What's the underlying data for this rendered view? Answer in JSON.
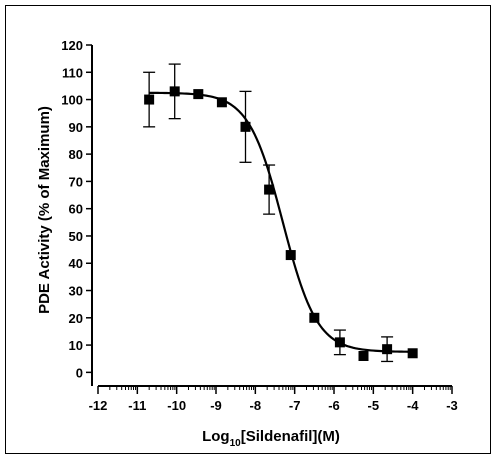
{
  "chart_data": {
    "type": "scatter",
    "xlabel": {
      "prefix": "Log",
      "sub": "10",
      "suffix": "[Sildenafil](M)"
    },
    "ylabel": "PDE  Activity (% of Maximum)",
    "xlim": [
      -12,
      -3
    ],
    "ylim": [
      -5,
      120
    ],
    "x_ticks": [
      -12,
      -11,
      -10,
      -9,
      -8,
      -7,
      -6,
      -5,
      -4,
      -3
    ],
    "x_tick_labels": [
      "-12",
      "-11",
      "-10",
      "-9",
      "-8",
      "-7",
      "-6",
      "-5",
      "-4",
      "-3"
    ],
    "y_ticks": [
      0,
      10,
      20,
      30,
      40,
      50,
      60,
      70,
      80,
      90,
      100,
      110,
      120
    ],
    "y_tick_labels": [
      "0",
      "10",
      "20",
      "30",
      "40",
      "50",
      "60",
      "70",
      "80",
      "90",
      "100",
      "110",
      "120"
    ],
    "grid": false,
    "marker_color": "#000000",
    "points": [
      {
        "x": -10.7,
        "y": 100,
        "err": 10
      },
      {
        "x": -10.05,
        "y": 103,
        "err": 10
      },
      {
        "x": -9.45,
        "y": 102,
        "err": 0
      },
      {
        "x": -8.85,
        "y": 99,
        "err": 0
      },
      {
        "x": -8.25,
        "y": 90,
        "err": 13
      },
      {
        "x": -7.65,
        "y": 67,
        "err": 9
      },
      {
        "x": -7.1,
        "y": 43,
        "err": 0
      },
      {
        "x": -6.5,
        "y": 20,
        "err": 0
      },
      {
        "x": -5.85,
        "y": 11,
        "err": 4.5
      },
      {
        "x": -5.25,
        "y": 6,
        "err": 0
      },
      {
        "x": -4.65,
        "y": 8.5,
        "err": 4.5
      },
      {
        "x": -4.0,
        "y": 7,
        "err": 0
      }
    ],
    "fit": {
      "bottom": 7.5,
      "top": 102.5,
      "log_ic50": -7.3,
      "hill_slope": 1.0,
      "x_range": [
        -10.7,
        -4.0
      ]
    }
  }
}
